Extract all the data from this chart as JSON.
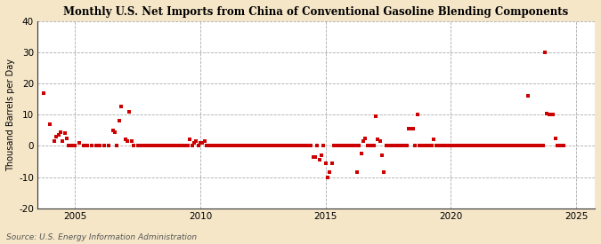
{
  "title": "Monthly U.S. Net Imports from China of Conventional Gasoline Blending Components",
  "ylabel": "Thousand Barrels per Day",
  "source": "Source: U.S. Energy Information Administration",
  "fig_background_color": "#f5e6c8",
  "plot_background_color": "#ffffff",
  "dot_color": "#cc0000",
  "ylim": [
    -20,
    40
  ],
  "yticks": [
    -20,
    -10,
    0,
    10,
    20,
    30,
    40
  ],
  "xlim_start": 2003.5,
  "xlim_end": 2025.75,
  "xticks": [
    2005,
    2010,
    2015,
    2020,
    2025
  ],
  "data": [
    [
      2003.75,
      17.0
    ],
    [
      2004.0,
      7.0
    ],
    [
      2004.17,
      1.5
    ],
    [
      2004.25,
      3.0
    ],
    [
      2004.33,
      3.5
    ],
    [
      2004.42,
      4.5
    ],
    [
      2004.5,
      1.5
    ],
    [
      2004.58,
      4.0
    ],
    [
      2004.67,
      2.5
    ],
    [
      2004.75,
      0.0
    ],
    [
      2004.83,
      0.0
    ],
    [
      2005.0,
      0.0
    ],
    [
      2005.17,
      1.0
    ],
    [
      2005.33,
      0.0
    ],
    [
      2005.5,
      0.0
    ],
    [
      2005.67,
      0.0
    ],
    [
      2005.83,
      0.0
    ],
    [
      2006.0,
      0.0
    ],
    [
      2006.17,
      0.0
    ],
    [
      2006.33,
      0.0
    ],
    [
      2006.5,
      5.0
    ],
    [
      2006.58,
      4.5
    ],
    [
      2006.67,
      0.0
    ],
    [
      2006.75,
      8.0
    ],
    [
      2006.83,
      12.5
    ],
    [
      2007.0,
      2.0
    ],
    [
      2007.08,
      1.5
    ],
    [
      2007.17,
      11.0
    ],
    [
      2007.25,
      1.5
    ],
    [
      2007.33,
      0.0
    ],
    [
      2007.5,
      0.0
    ],
    [
      2007.58,
      0.0
    ],
    [
      2007.67,
      0.0
    ],
    [
      2007.75,
      0.0
    ],
    [
      2007.83,
      0.0
    ],
    [
      2007.92,
      0.0
    ],
    [
      2008.0,
      0.0
    ],
    [
      2008.08,
      0.0
    ],
    [
      2008.17,
      0.0
    ],
    [
      2008.25,
      0.0
    ],
    [
      2008.33,
      0.0
    ],
    [
      2008.42,
      0.0
    ],
    [
      2008.5,
      0.0
    ],
    [
      2008.58,
      0.0
    ],
    [
      2008.67,
      0.0
    ],
    [
      2008.75,
      0.0
    ],
    [
      2008.83,
      0.0
    ],
    [
      2008.92,
      0.0
    ],
    [
      2009.0,
      0.0
    ],
    [
      2009.08,
      0.0
    ],
    [
      2009.17,
      0.0
    ],
    [
      2009.25,
      0.0
    ],
    [
      2009.33,
      0.0
    ],
    [
      2009.42,
      0.0
    ],
    [
      2009.5,
      0.0
    ],
    [
      2009.58,
      2.0
    ],
    [
      2009.67,
      0.0
    ],
    [
      2009.75,
      1.0
    ],
    [
      2009.83,
      1.5
    ],
    [
      2009.92,
      0.0
    ],
    [
      2010.0,
      1.0
    ],
    [
      2010.08,
      1.0
    ],
    [
      2010.17,
      1.5
    ],
    [
      2010.25,
      0.0
    ],
    [
      2010.33,
      0.0
    ],
    [
      2010.42,
      0.0
    ],
    [
      2010.5,
      0.0
    ],
    [
      2010.58,
      0.0
    ],
    [
      2010.67,
      0.0
    ],
    [
      2010.75,
      0.0
    ],
    [
      2010.83,
      0.0
    ],
    [
      2010.92,
      0.0
    ],
    [
      2011.0,
      0.0
    ],
    [
      2011.08,
      0.0
    ],
    [
      2011.17,
      0.0
    ],
    [
      2011.25,
      0.0
    ],
    [
      2011.33,
      0.0
    ],
    [
      2011.42,
      0.0
    ],
    [
      2011.5,
      0.0
    ],
    [
      2011.58,
      0.0
    ],
    [
      2011.67,
      0.0
    ],
    [
      2011.75,
      0.0
    ],
    [
      2011.83,
      0.0
    ],
    [
      2011.92,
      0.0
    ],
    [
      2012.0,
      0.0
    ],
    [
      2012.08,
      0.0
    ],
    [
      2012.17,
      0.0
    ],
    [
      2012.25,
      0.0
    ],
    [
      2012.33,
      0.0
    ],
    [
      2012.42,
      0.0
    ],
    [
      2012.5,
      0.0
    ],
    [
      2012.58,
      0.0
    ],
    [
      2012.67,
      0.0
    ],
    [
      2012.75,
      0.0
    ],
    [
      2012.83,
      0.0
    ],
    [
      2012.92,
      0.0
    ],
    [
      2013.0,
      0.0
    ],
    [
      2013.08,
      0.0
    ],
    [
      2013.17,
      0.0
    ],
    [
      2013.25,
      0.0
    ],
    [
      2013.33,
      0.0
    ],
    [
      2013.42,
      0.0
    ],
    [
      2013.5,
      0.0
    ],
    [
      2013.58,
      0.0
    ],
    [
      2013.67,
      0.0
    ],
    [
      2013.75,
      0.0
    ],
    [
      2013.83,
      0.0
    ],
    [
      2013.92,
      0.0
    ],
    [
      2014.0,
      0.0
    ],
    [
      2014.08,
      0.0
    ],
    [
      2014.17,
      0.0
    ],
    [
      2014.25,
      0.0
    ],
    [
      2014.33,
      0.0
    ],
    [
      2014.42,
      0.0
    ],
    [
      2014.5,
      -3.5
    ],
    [
      2014.58,
      -3.5
    ],
    [
      2014.67,
      0.0
    ],
    [
      2014.75,
      -4.5
    ],
    [
      2014.83,
      -3.0
    ],
    [
      2014.92,
      0.0
    ],
    [
      2015.0,
      -5.5
    ],
    [
      2015.08,
      -10.0
    ],
    [
      2015.17,
      -8.5
    ],
    [
      2015.25,
      -5.5
    ],
    [
      2015.33,
      0.0
    ],
    [
      2015.42,
      0.0
    ],
    [
      2015.5,
      0.0
    ],
    [
      2015.58,
      0.0
    ],
    [
      2015.67,
      0.0
    ],
    [
      2015.75,
      0.0
    ],
    [
      2015.83,
      0.0
    ],
    [
      2015.92,
      0.0
    ],
    [
      2016.0,
      0.0
    ],
    [
      2016.08,
      0.0
    ],
    [
      2016.17,
      0.0
    ],
    [
      2016.25,
      -8.5
    ],
    [
      2016.33,
      0.0
    ],
    [
      2016.42,
      -2.5
    ],
    [
      2016.5,
      1.5
    ],
    [
      2016.58,
      2.5
    ],
    [
      2016.67,
      0.0
    ],
    [
      2016.75,
      0.0
    ],
    [
      2016.83,
      0.0
    ],
    [
      2016.92,
      0.0
    ],
    [
      2017.0,
      9.5
    ],
    [
      2017.08,
      2.0
    ],
    [
      2017.17,
      1.5
    ],
    [
      2017.25,
      -3.0
    ],
    [
      2017.33,
      -8.5
    ],
    [
      2017.42,
      0.0
    ],
    [
      2017.5,
      0.0
    ],
    [
      2017.58,
      0.0
    ],
    [
      2017.67,
      0.0
    ],
    [
      2017.75,
      0.0
    ],
    [
      2017.83,
      0.0
    ],
    [
      2017.92,
      0.0
    ],
    [
      2018.0,
      0.0
    ],
    [
      2018.08,
      0.0
    ],
    [
      2018.17,
      0.0
    ],
    [
      2018.25,
      0.0
    ],
    [
      2018.33,
      5.5
    ],
    [
      2018.42,
      5.5
    ],
    [
      2018.5,
      5.5
    ],
    [
      2018.58,
      0.0
    ],
    [
      2018.67,
      10.0
    ],
    [
      2018.75,
      0.0
    ],
    [
      2018.83,
      0.0
    ],
    [
      2018.92,
      0.0
    ],
    [
      2019.0,
      0.0
    ],
    [
      2019.08,
      0.0
    ],
    [
      2019.17,
      0.0
    ],
    [
      2019.25,
      0.0
    ],
    [
      2019.33,
      2.0
    ],
    [
      2019.42,
      0.0
    ],
    [
      2019.5,
      0.0
    ],
    [
      2019.58,
      0.0
    ],
    [
      2019.67,
      0.0
    ],
    [
      2019.75,
      0.0
    ],
    [
      2019.83,
      0.0
    ],
    [
      2019.92,
      0.0
    ],
    [
      2020.0,
      0.0
    ],
    [
      2020.08,
      0.0
    ],
    [
      2020.17,
      0.0
    ],
    [
      2020.25,
      0.0
    ],
    [
      2020.33,
      0.0
    ],
    [
      2020.42,
      0.0
    ],
    [
      2020.5,
      0.0
    ],
    [
      2020.58,
      0.0
    ],
    [
      2020.67,
      0.0
    ],
    [
      2020.75,
      0.0
    ],
    [
      2020.83,
      0.0
    ],
    [
      2020.92,
      0.0
    ],
    [
      2021.0,
      0.0
    ],
    [
      2021.08,
      0.0
    ],
    [
      2021.17,
      0.0
    ],
    [
      2021.25,
      0.0
    ],
    [
      2021.33,
      0.0
    ],
    [
      2021.42,
      0.0
    ],
    [
      2021.5,
      0.0
    ],
    [
      2021.58,
      0.0
    ],
    [
      2021.67,
      0.0
    ],
    [
      2021.75,
      0.0
    ],
    [
      2021.83,
      0.0
    ],
    [
      2021.92,
      0.0
    ],
    [
      2022.0,
      0.0
    ],
    [
      2022.08,
      0.0
    ],
    [
      2022.17,
      0.0
    ],
    [
      2022.25,
      0.0
    ],
    [
      2022.33,
      0.0
    ],
    [
      2022.42,
      0.0
    ],
    [
      2022.5,
      0.0
    ],
    [
      2022.58,
      0.0
    ],
    [
      2022.67,
      0.0
    ],
    [
      2022.75,
      0.0
    ],
    [
      2022.83,
      0.0
    ],
    [
      2022.92,
      0.0
    ],
    [
      2023.0,
      0.0
    ],
    [
      2023.08,
      16.0
    ],
    [
      2023.17,
      0.0
    ],
    [
      2023.25,
      0.0
    ],
    [
      2023.33,
      0.0
    ],
    [
      2023.42,
      0.0
    ],
    [
      2023.5,
      0.0
    ],
    [
      2023.58,
      0.0
    ],
    [
      2023.67,
      0.0
    ],
    [
      2023.75,
      30.0
    ],
    [
      2023.83,
      10.5
    ],
    [
      2023.92,
      10.0
    ],
    [
      2024.0,
      10.0
    ],
    [
      2024.08,
      10.0
    ],
    [
      2024.17,
      2.5
    ],
    [
      2024.25,
      0.0
    ],
    [
      2024.33,
      0.0
    ],
    [
      2024.42,
      0.0
    ],
    [
      2024.5,
      0.0
    ]
  ]
}
